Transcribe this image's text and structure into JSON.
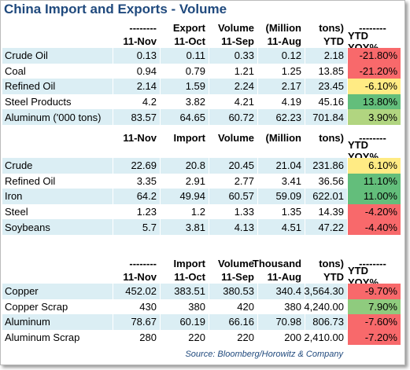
{
  "title": "China Import and Exports - Volume",
  "sections": [
    {
      "header_top": [
        "--------",
        "Export",
        "Volume",
        "(Million",
        "tons)",
        "--------"
      ],
      "header": [
        "11-Nov",
        "11-Oct",
        "11-Sep",
        "11-Aug",
        "YTD",
        "YTD YOY%"
      ],
      "rows": [
        {
          "label": "Crude Oil",
          "cells": [
            "0.13",
            "0.11",
            "0.33",
            "0.12",
            "2.18",
            "-21.80%"
          ],
          "yoy_color": "#f8696b"
        },
        {
          "label": "Coal",
          "cells": [
            "0.94",
            "0.79",
            "1.21",
            "1.25",
            "13.85",
            "-21.20%"
          ],
          "yoy_color": "#f8696b"
        },
        {
          "label": "Refined Oil",
          "cells": [
            "2.14",
            "1.59",
            "2.24",
            "2.17",
            "23.45",
            "-6.10%"
          ],
          "yoy_color": "#ffeb84"
        },
        {
          "label": "Steel Products",
          "cells": [
            "4.2",
            "3.82",
            "4.21",
            "4.19",
            "45.16",
            "13.80%"
          ],
          "yoy_color": "#63be7b"
        },
        {
          "label": "Aluminum ('000 tons)",
          "cells": [
            "83.57",
            "64.65",
            "60.72",
            "62.23",
            "701.84",
            "3.90%"
          ],
          "yoy_color": "#b1d580"
        }
      ]
    },
    {
      "header_top": [
        "11-Nov",
        "Import",
        "Volume",
        "(Million",
        "tons)",
        "--------"
      ],
      "header": [
        null,
        null,
        null,
        null,
        null,
        "YTD YOY%"
      ],
      "rows": [
        {
          "label": "Crude",
          "cells": [
            "22.69",
            "20.8",
            "20.45",
            "21.04",
            "231.86",
            "6.10%"
          ],
          "yoy_color": "#ffeb84"
        },
        {
          "label": "Refined Oil",
          "cells": [
            "3.35",
            "2.91",
            "2.77",
            "3.41",
            "36.56",
            "11.10%"
          ],
          "yoy_color": "#63be7b"
        },
        {
          "label": "Iron",
          "cells": [
            "64.2",
            "49.94",
            "60.57",
            "59.09",
            "622.01",
            "11.00%"
          ],
          "yoy_color": "#63be7b"
        },
        {
          "label": "Steel",
          "cells": [
            "1.23",
            "1.2",
            "1.33",
            "1.35",
            "14.39",
            "-4.20%"
          ],
          "yoy_color": "#f8696b"
        },
        {
          "label": "Soybeans",
          "cells": [
            "5.7",
            "3.81",
            "4.13",
            "4.51",
            "47.22",
            "-4.40%"
          ],
          "yoy_color": "#f8696b"
        }
      ]
    },
    {
      "header_top": [
        "--------",
        "Import",
        "Volume",
        "Thousand",
        "tons)",
        "--------"
      ],
      "header": [
        "11-Nov",
        "11-Oct",
        "11-Sep",
        "11-Aug",
        "YTD",
        "YTD YOY%"
      ],
      "rows": [
        {
          "label": "Copper",
          "cells": [
            "452.02",
            "383.51",
            "380.53",
            "340.4",
            "3,564.30",
            "-9.70%"
          ],
          "yoy_color": "#f8696b"
        },
        {
          "label": "Copper Scrap",
          "cells": [
            "430",
            "380",
            "420",
            "380",
            "4,240.00",
            "7.90%"
          ],
          "yoy_color": "#8fcb7e"
        },
        {
          "label": "Aluminum",
          "cells": [
            "78.67",
            "60.19",
            "66.16",
            "70.98",
            "806.73",
            "-7.60%"
          ],
          "yoy_color": "#f8696b"
        },
        {
          "label": "Aluminum Scrap",
          "cells": [
            "280",
            "220",
            "220",
            "200",
            "2,410.00",
            "-7.20%"
          ],
          "yoy_color": "#f8696b"
        }
      ]
    }
  ],
  "source": "Source: Bloomberg/Horowitz & Company"
}
